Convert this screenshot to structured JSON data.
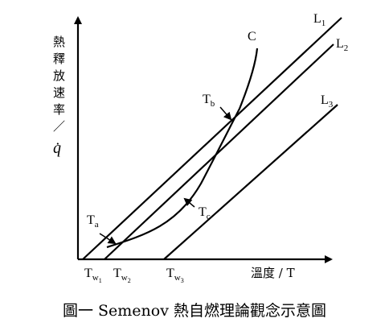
{
  "diagram": {
    "y_axis_label_chars": [
      "熱",
      "釋",
      "放",
      "速",
      "率",
      "／"
    ],
    "y_axis_symbol": "q̇",
    "x_axis_label": "溫度 / T",
    "curve_label": "C",
    "lines": [
      {
        "name": "L",
        "sub": "1"
      },
      {
        "name": "L",
        "sub": "2"
      },
      {
        "name": "L",
        "sub": "3"
      }
    ],
    "points": [
      {
        "name": "T",
        "sub": "a"
      },
      {
        "name": "T",
        "sub": "b"
      },
      {
        "name": "T",
        "sub": "c"
      }
    ],
    "wall_temps": [
      {
        "name": "T",
        "sub": "w",
        "subsub": "1"
      },
      {
        "name": "T",
        "sub": "w",
        "subsub": "2"
      },
      {
        "name": "T",
        "sub": "w",
        "subsub": "3"
      }
    ]
  },
  "caption": "圖一 Semenov 熱自燃理論觀念示意圖"
}
